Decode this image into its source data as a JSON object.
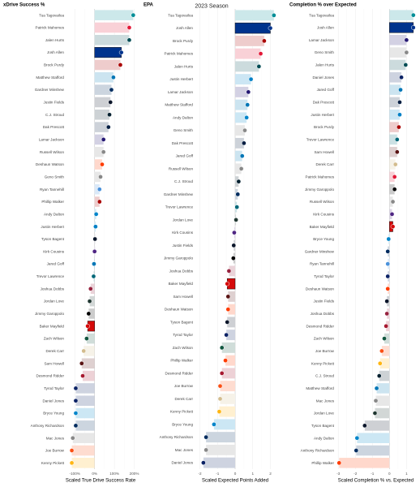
{
  "chart_data": {
    "season_title": "2023 Season",
    "team_colors": {
      "MIA": "#008E97",
      "BUF": "#00338D",
      "PHI": "#004C54",
      "SF": "#AA0000",
      "KC": "#E31837",
      "DET": "#0076B6",
      "IND": "#002C5F",
      "CHI": "#0B162A",
      "HOU": "#03202F",
      "DAL": "#041E42",
      "BAL": "#241773",
      "NYJ": "#125740",
      "CLE": "#FF3C00",
      "TEN": "#4B92DB",
      "NYG": "#0B2265",
      "TB": "#D50A0A",
      "LAC": "#0080C6",
      "LV": "#000000",
      "MIN": "#4F2683",
      "ARI": "#97233F",
      "GB": "#203731",
      "ATL": "#A71930",
      "WAS": "#5A1414",
      "NO": "#D3BC8D",
      "JAX": "#006778",
      "CAR": "#0085CA",
      "CIN": "#FB4F14",
      "PIT": "#FFB612"
    },
    "panels": [
      {
        "type": "bar",
        "orientation": "horizontal",
        "title": "xDrive Success %",
        "xlabel": "Scaled True Drive Success Rate",
        "xlim": [
          -1.5,
          2.1
        ],
        "ticks": [
          -1,
          0,
          1,
          2
        ],
        "tick_labels": [
          "-100%",
          "0%",
          "100%",
          "200%"
        ],
        "players": [
          "Tua Tagovailoa",
          "Patrick Mahomes",
          "Jalen Hurts",
          "Josh Allen",
          "Brock Purdy",
          "Matthew Stafford",
          "Gardner Minshew",
          "Justin Fields",
          "C.J. Stroud",
          "Dak Prescott",
          "Lamar Jackson",
          "Russell Wilson",
          "Deshaun Watson",
          "Geno Smith",
          "Ryan Tannehill",
          "Phillip Walker",
          "Andy Dalton",
          "Justin Herbert",
          "Tyson Bagent",
          "Kirk Cousins",
          "Jared Goff",
          "Trevor Lawrence",
          "Joshua Dobbs",
          "Jordan Love",
          "Jimmy Garoppolo",
          "Baker Mayfield",
          "Zach Wilson",
          "Derek Carr",
          "Sam Howell",
          "Desmond Ridder",
          "Tyrod Taylor",
          "Daniel Jones",
          "Bryce Young",
          "Anthony Richardson",
          "Mac Jones",
          "Joe Burrow",
          "Kenny Pickett"
        ],
        "teams": [
          "MIA",
          "KC",
          "PHI",
          "BUF",
          "SF",
          "DET",
          "IND",
          "CHI",
          "HOU",
          "DAL",
          "BAL",
          "DEN",
          "CLE",
          "SEA",
          "TEN",
          "SF",
          "CAR",
          "LAC",
          "CHI",
          "MIN",
          "DET",
          "JAX",
          "ARI",
          "GB",
          "LV",
          "TB",
          "NYJ",
          "NO",
          "WAS",
          "ATL",
          "NYG",
          "NYG",
          "CAR",
          "IND",
          "NE",
          "CIN",
          "PIT"
        ],
        "values": [
          1.95,
          1.75,
          1.75,
          1.35,
          1.3,
          0.95,
          0.85,
          0.8,
          0.75,
          0.7,
          0.45,
          0.45,
          0.38,
          0.3,
          0.25,
          0.25,
          0.08,
          0.05,
          0.02,
          0.0,
          -0.03,
          -0.05,
          -0.2,
          -0.25,
          -0.3,
          -0.35,
          -0.4,
          -0.55,
          -0.65,
          -0.6,
          -0.95,
          -0.95,
          -0.95,
          -0.95,
          -1.1,
          -1.15,
          -1.15
        ],
        "highlight": [
          "Josh Allen",
          "Baker Mayfield"
        ]
      },
      {
        "type": "bar",
        "orientation": "horizontal",
        "title": "EPA",
        "xlabel": "Scaled Expected Points Added",
        "xlim": [
          -2.3,
          2.3
        ],
        "ticks": [
          -2,
          -1,
          0,
          1,
          2
        ],
        "tick_labels": [
          "-2",
          "-1",
          "0",
          "1",
          "2"
        ],
        "players": [
          "Tua Tagovailoa",
          "Josh Allen",
          "Brock Purdy",
          "Patrick Mahomes",
          "Jalen Hurts",
          "Justin Herbert",
          "Lamar Jackson",
          "Matthew Stafford",
          "Andy Dalton",
          "Geno Smith",
          "Dak Prescott",
          "Jared Goff",
          "Russell Wilson",
          "C.J. Stroud",
          "Gardner Minshew",
          "Trevor Lawrence",
          "Jordan Love",
          "Kirk Cousins",
          "Justin Fields",
          "Jimmy Garoppolo",
          "Joshua Dobbs",
          "Baker Mayfield",
          "Sam Howell",
          "Deshaun Watson",
          "Tyson Bagent",
          "Tyrod Taylor",
          "Zach Wilson",
          "Phillip Walker",
          "Desmond Ridder",
          "Joe Burrow",
          "Derek Carr",
          "Kenny Pickett",
          "Bryce Young",
          "Anthony Richardson",
          "Mac Jones",
          "Daniel Jones"
        ],
        "teams": [
          "MIA",
          "BUF",
          "SF",
          "KC",
          "PHI",
          "LAC",
          "BAL",
          "DET",
          "CAR",
          "SEA",
          "DAL",
          "DET",
          "DEN",
          "HOU",
          "IND",
          "JAX",
          "GB",
          "MIN",
          "CHI",
          "LV",
          "ARI",
          "TB",
          "WAS",
          "CLE",
          "CHI",
          "NYG",
          "NYJ",
          "CLE",
          "ATL",
          "CIN",
          "NO",
          "PIT",
          "CAR",
          "IND",
          "NE",
          "NYG"
        ],
        "values": [
          2.2,
          2.0,
          1.65,
          1.45,
          1.35,
          0.9,
          0.75,
          0.7,
          0.65,
          0.55,
          0.5,
          0.4,
          0.35,
          0.2,
          0.15,
          0.1,
          0.05,
          -0.05,
          -0.08,
          -0.1,
          -0.35,
          -0.45,
          -0.4,
          -0.4,
          -0.45,
          -0.5,
          -0.75,
          -0.55,
          -0.75,
          -0.85,
          -0.85,
          -0.9,
          -1.2,
          -1.65,
          -1.65,
          -1.8
        ],
        "highlight": [
          "Josh Allen",
          "Baker Mayfield"
        ]
      },
      {
        "type": "bar",
        "orientation": "horizontal",
        "title": "Completion % over Expected",
        "xlabel": "Scaled Completion % vs. Expected",
        "xlim": [
          -3.2,
          1.6
        ],
        "ticks": [
          -3,
          -2,
          -1,
          0,
          1
        ],
        "tick_labels": [
          "-3",
          "-2",
          "-1",
          "0",
          "1"
        ],
        "players": [
          "Tua Tagovailoa",
          "Josh Allen",
          "Lamar Jackson",
          "Geno Smith",
          "Jalen Hurts",
          "Daniel Jones",
          "Jared Goff",
          "Dak Prescott",
          "Justin Herbert",
          "Brock Purdy",
          "Trevor Lawrence",
          "Sam Howell",
          "Derek Carr",
          "Patrick Mahomes",
          "Jimmy Garoppolo",
          "Russell Wilson",
          "Kirk Cousins",
          "Baker Mayfield",
          "Bryce Young",
          "Gardner Minshew",
          "Ryan Tannehill",
          "Tyrod Taylor",
          "Deshaun Watson",
          "Justin Fields",
          "Joshua Dobbs",
          "Desmond Ridder",
          "Zach Wilson",
          "Joe Burrow",
          "Kenny Pickett",
          "C.J. Stroud",
          "Matthew Stafford",
          "Mac Jones",
          "Jordan Love",
          "Tyson Bagent",
          "Andy Dalton",
          "Anthony Richardson",
          "Phillip Walker"
        ],
        "teams": [
          "MIA",
          "BUF",
          "BAL",
          "SEA",
          "PHI",
          "NYG",
          "DET",
          "DAL",
          "LAC",
          "SF",
          "JAX",
          "WAS",
          "NO",
          "KC",
          "LV",
          "DEN",
          "MIN",
          "TB",
          "CAR",
          "IND",
          "TEN",
          "NYG",
          "CLE",
          "CHI",
          "ARI",
          "ATL",
          "NYJ",
          "CIN",
          "PIT",
          "HOU",
          "DET",
          "NE",
          "GB",
          "CHI",
          "CAR",
          "IND",
          "CLE"
        ],
        "values": [
          1.4,
          1.4,
          1.0,
          1.0,
          0.95,
          0.7,
          0.65,
          0.6,
          0.6,
          0.55,
          0.45,
          0.45,
          0.35,
          0.3,
          0.3,
          0.2,
          0.15,
          0.2,
          -0.05,
          -0.1,
          -0.1,
          -0.1,
          -0.1,
          -0.15,
          -0.15,
          -0.2,
          -0.3,
          -0.45,
          -0.55,
          -0.6,
          -0.75,
          -0.8,
          -0.85,
          -1.45,
          -1.9,
          -1.95,
          -2.95
        ],
        "highlight": [
          "Josh Allen",
          "Baker Mayfield"
        ]
      }
    ]
  }
}
